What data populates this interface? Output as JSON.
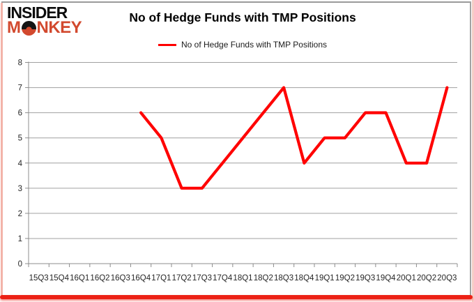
{
  "logo": {
    "insider": "INSIDER",
    "monkey_m": "M",
    "monkey_rest": "NKEY",
    "red": "#d2492e"
  },
  "header": {
    "title": "No of Hedge Funds with TMP Positions"
  },
  "legend": {
    "label": "No of Hedge Funds with TMP Positions",
    "swatch_color": "#ff0000"
  },
  "colors": {
    "line": "#ff0000",
    "grid": "#a0a0a0",
    "axis": "#8c8c8c",
    "tick_text": "#262626",
    "title_text": "#000000",
    "frame_red": "#ec2115",
    "frame_pink": "#f3b3a9",
    "frame_gray": "#9a9a9a"
  },
  "chart_data": {
    "type": "line",
    "title": "No of Hedge Funds with TMP Positions",
    "xlabel": "",
    "ylabel": "",
    "ylim": [
      0,
      8
    ],
    "ytick_step": 1,
    "grid": true,
    "legend_position": "top",
    "categories": [
      "15Q3",
      "15Q4",
      "16Q1",
      "16Q2",
      "16Q3",
      "16Q4",
      "17Q1",
      "17Q2",
      "17Q3",
      "17Q4",
      "18Q1",
      "18Q2",
      "18Q3",
      "18Q4",
      "19Q1",
      "19Q2",
      "19Q3",
      "19Q4",
      "20Q1",
      "20Q2",
      "20Q3"
    ],
    "series": [
      {
        "name": "No of Hedge Funds with TMP Positions",
        "color": "#ff0000",
        "values": [
          null,
          null,
          null,
          null,
          null,
          6,
          5,
          3,
          3,
          4,
          5,
          6,
          7,
          4,
          5,
          5,
          6,
          6,
          4,
          4,
          7
        ]
      }
    ]
  }
}
